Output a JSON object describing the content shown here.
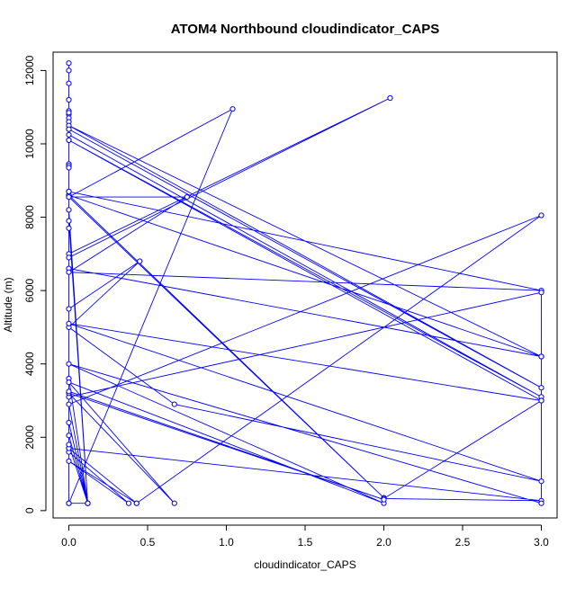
{
  "chart_data": {
    "type": "line",
    "title": "ATOM4 Northbound cloudindicator_CAPS",
    "xlabel": "cloudindicator_CAPS",
    "ylabel": "Altitude (m)",
    "xlim": [
      -0.1,
      3.1
    ],
    "ylim": [
      -200,
      12500
    ],
    "x_ticks": [
      0,
      0.5,
      1,
      1.5,
      2,
      2.5,
      3
    ],
    "x_tick_labels": [
      "0.0",
      "0.5",
      "1.0",
      "1.5",
      "2.0",
      "2.5",
      "3.0"
    ],
    "y_ticks": [
      0,
      2000,
      4000,
      6000,
      8000,
      10000,
      12000
    ],
    "y_tick_labels": [
      "0",
      "2000",
      "4000",
      "6000",
      "8000",
      "10000",
      "12000"
    ],
    "grid": false,
    "legend": "none",
    "series_color": "#0000ff",
    "series": [
      {
        "x": [
          0,
          0,
          0,
          0,
          0,
          0,
          0,
          0,
          0,
          0,
          0,
          0,
          0,
          0,
          0,
          0,
          1.04,
          0,
          0,
          0.12,
          0,
          0,
          0,
          2.04,
          0,
          0,
          0,
          3,
          0,
          3,
          0,
          0,
          3,
          0,
          3,
          3,
          0,
          2,
          0,
          0.75,
          0,
          3,
          0,
          0,
          0.45,
          0,
          0.67,
          3,
          0,
          3,
          2,
          3,
          0,
          0.43,
          3,
          0,
          0.12,
          0,
          0,
          3,
          3,
          0,
          2,
          0,
          0.67,
          0,
          2,
          0,
          0,
          0.12,
          0,
          0,
          0.38,
          0,
          0.43,
          0,
          0,
          0.12,
          0,
          0
        ],
        "y": [
          12200,
          12000,
          11650,
          11200,
          10900,
          10800,
          10700,
          10600,
          10400,
          10100,
          9450,
          9400,
          9350,
          8700,
          8600,
          8550,
          10950,
          200,
          8200,
          200,
          7900,
          7700,
          7000,
          11250,
          6900,
          10850,
          6600,
          4200,
          10500,
          3350,
          10400,
          10250,
          3100,
          10100,
          3000,
          4200,
          8600,
          350,
          8550,
          8550,
          6500,
          6000,
          8700,
          5500,
          6800,
          5000,
          2900,
          800,
          5100,
          3000,
          330,
          270,
          1700,
          200,
          8050,
          2900,
          200,
          3600,
          3100,
          5950,
          200,
          4000,
          200,
          3500,
          200,
          3200,
          300,
          3250,
          2400,
          200,
          2050,
          1600,
          200,
          1350,
          200,
          1700,
          1800,
          200,
          200,
          200
        ]
      }
    ]
  }
}
